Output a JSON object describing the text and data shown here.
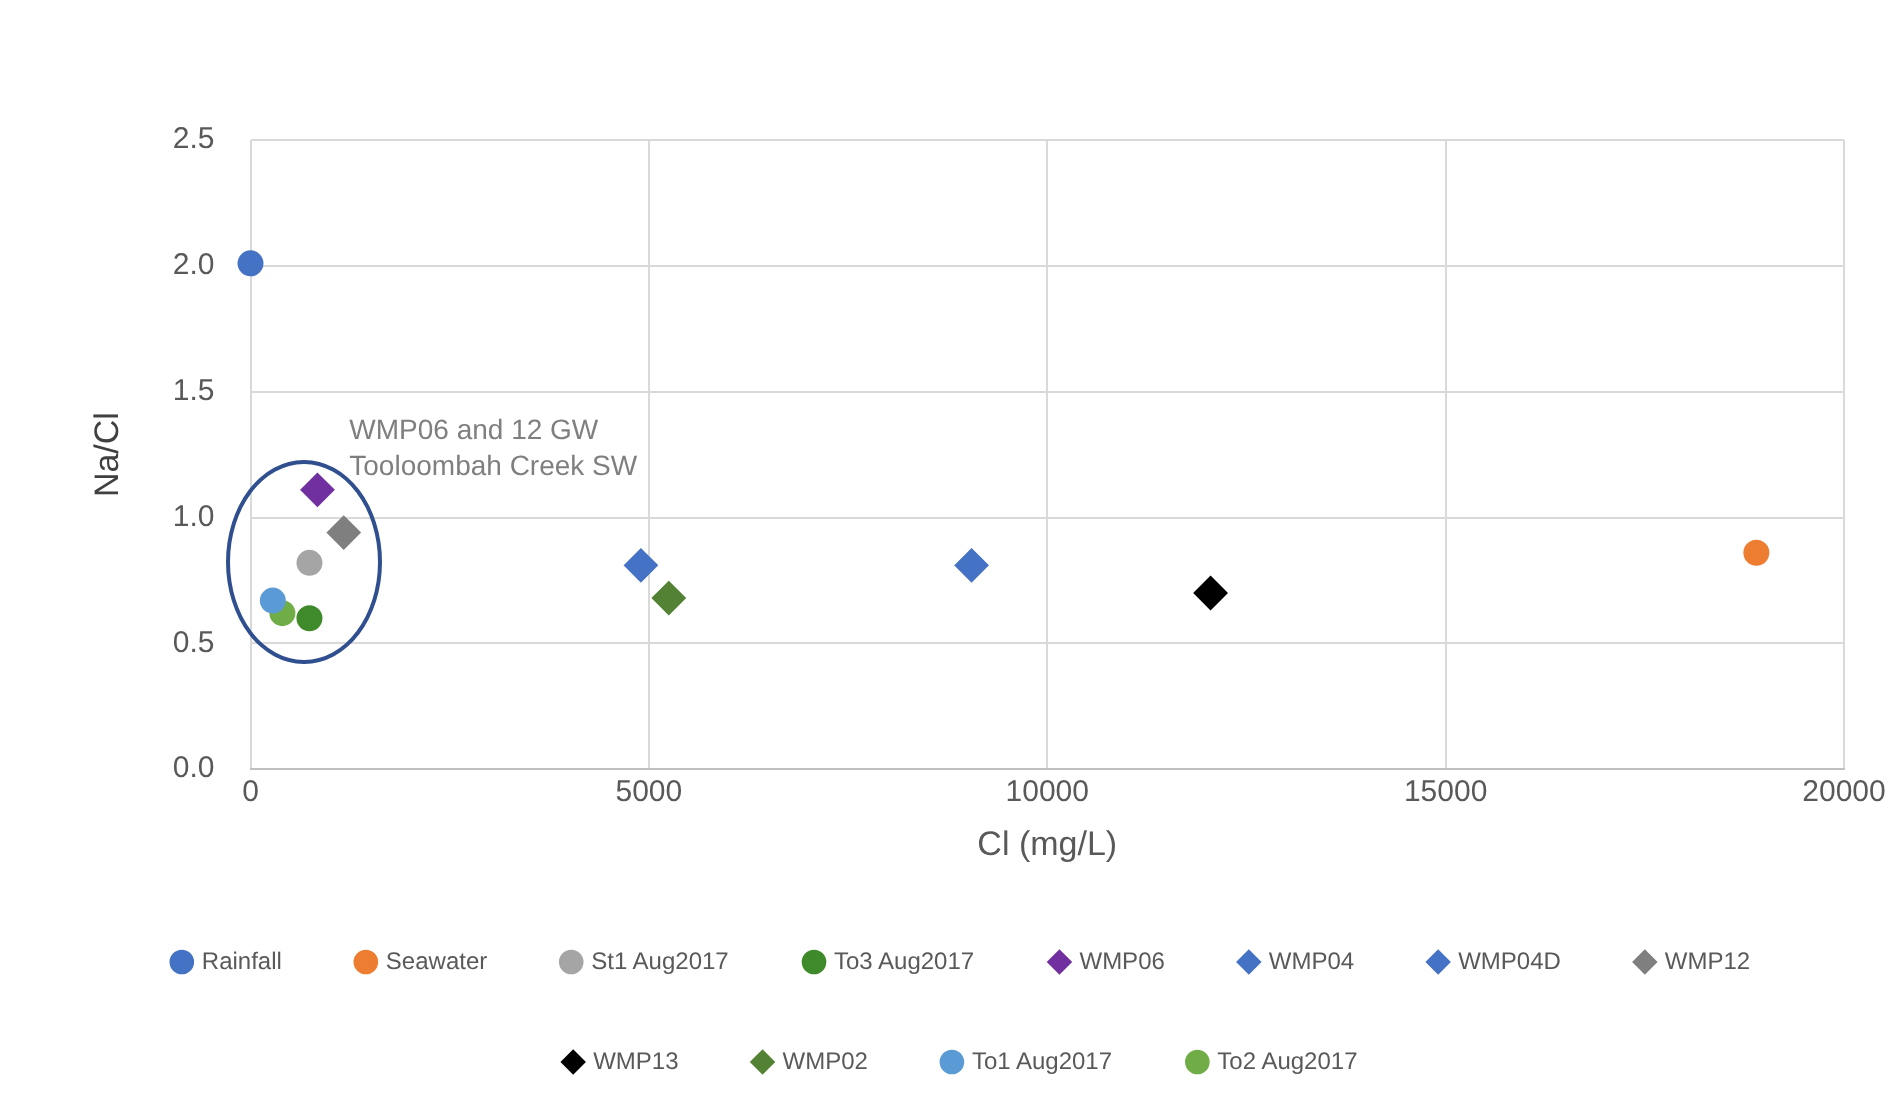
{
  "chart_data": {
    "type": "scatter",
    "xlabel": "Cl (mg/L)",
    "ylabel": "Na/Cl",
    "xlim": [
      0,
      20000
    ],
    "xticks": [
      0,
      5000,
      10000,
      15000,
      20000
    ],
    "ylim": [
      0,
      2.5
    ],
    "yticks": [
      {
        "value": 0,
        "label": "0.0"
      },
      {
        "value": 0.5,
        "label": "0.5"
      },
      {
        "value": 1,
        "label": "1.0"
      },
      {
        "value": 1.5,
        "label": "1.5"
      },
      {
        "value": 2,
        "label": "2.0"
      },
      {
        "value": 2.5,
        "label": "2.5"
      }
    ],
    "grid": true,
    "legend": "bottom",
    "series": [
      {
        "name": "Rainfall",
        "color": "#4472c4",
        "marker": "circle",
        "x": [
          0
        ],
        "values": [
          2.01
        ]
      },
      {
        "name": "Seawater",
        "color": "#ed7d31",
        "marker": "circle",
        "x": [
          18900
        ],
        "values": [
          0.86
        ]
      },
      {
        "name": "St1 Aug2017",
        "color": "#a5a5a5",
        "marker": "circle",
        "x": [
          740
        ],
        "values": [
          0.82
        ]
      },
      {
        "name": "To3 Aug2017",
        "color": "#3f8a2a",
        "marker": "circle",
        "x": [
          740
        ],
        "values": [
          0.6
        ]
      },
      {
        "name": "WMP06",
        "color": "#7030a0",
        "marker": "diamond",
        "x": [
          840
        ],
        "values": [
          1.11
        ]
      },
      {
        "name": "WMP04",
        "color": "#4472c4",
        "marker": "diamond",
        "x": [
          4900
        ],
        "values": [
          0.81
        ]
      },
      {
        "name": "WMP04D",
        "color": "#4472c4",
        "marker": "diamond",
        "x": [
          9050
        ],
        "values": [
          0.81
        ]
      },
      {
        "name": "WMP12",
        "color": "#7f7f7f",
        "marker": "diamond",
        "x": [
          1170
        ],
        "values": [
          0.94
        ]
      },
      {
        "name": "WMP13",
        "color": "#000000",
        "marker": "diamond",
        "x": [
          12050
        ],
        "values": [
          0.7
        ]
      },
      {
        "name": "WMP02",
        "color": "#548235",
        "marker": "diamond",
        "x": [
          5250
        ],
        "values": [
          0.68
        ]
      },
      {
        "name": "To1 Aug2017",
        "color": "#5b9bd5",
        "marker": "circle",
        "x": [
          280
        ],
        "values": [
          0.67
        ]
      },
      {
        "name": "To2 Aug2017",
        "color": "#70ad47",
        "marker": "circle",
        "x": [
          400
        ],
        "values": [
          0.62
        ]
      }
    ],
    "annotations": [
      "WMP06 and 12 GW\nTooloombah Creek SW"
    ]
  }
}
